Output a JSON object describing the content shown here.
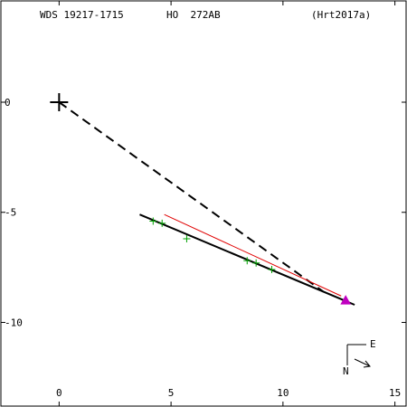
{
  "header": {
    "wds": "WDS 19217-1715",
    "designation": "HO  272AB",
    "reference": "(Hrt2017a)"
  },
  "compass": {
    "east": "E",
    "north": "N"
  },
  "chart_data": {
    "type": "scatter",
    "title": "",
    "xlabel": "",
    "ylabel": "",
    "xlim": [
      -2.6,
      15.5
    ],
    "ylim": [
      -13.8,
      4.6
    ],
    "x_ticks": [
      0,
      5,
      10,
      15
    ],
    "y_ticks": [
      0,
      -5,
      -10
    ],
    "x_tick_labels": [
      "0",
      "5",
      "10",
      "15"
    ],
    "y_tick_labels": [
      "0",
      "-5",
      "-10"
    ],
    "grid": false,
    "primary": {
      "x": 0,
      "y": 0
    },
    "observations": [
      {
        "x": 4.2,
        "y": -5.4
      },
      {
        "x": 4.6,
        "y": -5.5
      },
      {
        "x": 5.7,
        "y": -6.2
      },
      {
        "x": 8.4,
        "y": -7.2
      },
      {
        "x": 8.8,
        "y": -7.3
      },
      {
        "x": 9.5,
        "y": -7.6
      }
    ],
    "orbit_fit": {
      "from": {
        "x": 3.6,
        "y": -5.1
      },
      "to": {
        "x": 13.2,
        "y": -9.2
      }
    },
    "red_line": {
      "from": {
        "x": 4.7,
        "y": -5.1
      },
      "to": {
        "x": 12.6,
        "y": -8.8
      }
    },
    "dashed_line": {
      "from": {
        "x": 0,
        "y": 0
      },
      "to": {
        "x": 11.8,
        "y": -8.6
      }
    },
    "latest_point": {
      "x": 12.8,
      "y": -9.0
    },
    "colors": {
      "axes": "#000000",
      "fit": "#000000",
      "red_line": "#e00000",
      "observations": "#00a000",
      "latest": "#c000c0",
      "dashed": "#000000"
    }
  }
}
